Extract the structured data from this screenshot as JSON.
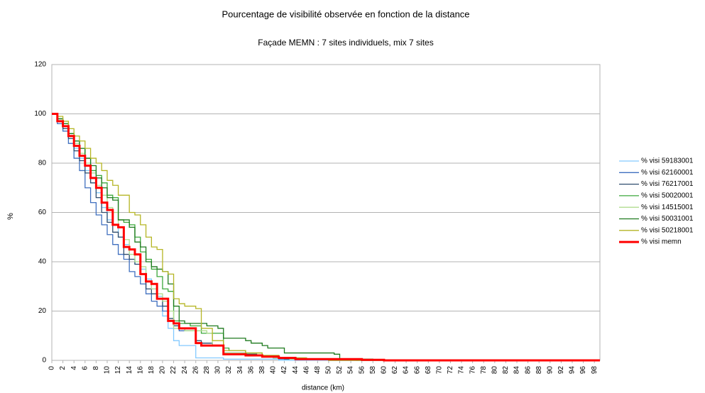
{
  "chart_data": {
    "type": "line",
    "title": "Pourcentage de visibilité observée en fonction de la distance",
    "subtitle": "Façade MEMN : 7 sites individuels, mix 7 sites",
    "x_label": "distance (km)",
    "y_label": "%",
    "step": true,
    "grid": true,
    "legend": "right",
    "x": [
      0,
      1,
      2,
      3,
      4,
      5,
      6,
      7,
      8,
      9,
      10,
      11,
      12,
      13,
      14,
      15,
      16,
      17,
      18,
      19,
      20,
      21,
      22,
      23,
      24,
      25,
      26,
      27,
      28,
      29,
      30,
      31,
      32,
      33,
      34,
      35,
      36,
      37,
      38,
      39,
      40,
      41,
      42,
      43,
      44,
      45,
      46,
      47,
      48,
      49,
      50,
      51,
      52,
      53,
      54,
      55,
      56,
      57,
      58,
      59,
      60,
      61,
      62,
      63,
      64,
      65,
      66,
      67,
      68,
      69,
      70,
      71,
      72,
      73,
      74,
      75,
      76,
      77,
      78,
      79,
      80,
      81,
      82,
      83,
      84,
      85,
      86,
      87,
      88,
      89,
      90,
      91,
      92,
      93,
      94,
      95,
      96,
      97,
      98,
      99
    ],
    "xlim": [
      0,
      99
    ],
    "xticks": [
      0,
      2,
      4,
      6,
      8,
      10,
      12,
      14,
      16,
      18,
      20,
      22,
      24,
      26,
      28,
      30,
      32,
      34,
      36,
      38,
      40,
      42,
      44,
      46,
      48,
      50,
      52,
      54,
      56,
      58,
      60,
      62,
      64,
      66,
      68,
      70,
      72,
      74,
      76,
      78,
      80,
      82,
      84,
      86,
      88,
      90,
      92,
      94,
      96,
      98
    ],
    "ylim": [
      0,
      120
    ],
    "yticks": [
      0,
      20,
      40,
      60,
      80,
      100,
      120
    ],
    "series": [
      {
        "name": "% visi 59183001",
        "color": "#83caff",
        "width": 1.3,
        "values": [
          100,
          97,
          95,
          91,
          86,
          82,
          77,
          72,
          68,
          62,
          57,
          55,
          50,
          47,
          41,
          39,
          37,
          33,
          29,
          26,
          18,
          13,
          8,
          6,
          6,
          6,
          1,
          1,
          1,
          1,
          1,
          0.5,
          0.5,
          0.5,
          0.5,
          0.5,
          0.5,
          0.5,
          0.5,
          0.5,
          0.5,
          0,
          0,
          0,
          0,
          0,
          0,
          0,
          0,
          0,
          0,
          0,
          0,
          0,
          0,
          0,
          0,
          0,
          0,
          0,
          0,
          0,
          0,
          0,
          0,
          0,
          0,
          0,
          0,
          0,
          0,
          0,
          0,
          0,
          0,
          0,
          0,
          0,
          0,
          0,
          0,
          0,
          0,
          0,
          0,
          0,
          0,
          0,
          0,
          0,
          0,
          0,
          0,
          0,
          0,
          0,
          0,
          0,
          0,
          0
        ]
      },
      {
        "name": "% visi 62160001",
        "color": "#3f6fbf",
        "width": 1.3,
        "values": [
          100,
          96,
          93,
          88,
          82,
          77,
          70,
          64,
          59,
          55,
          51,
          47,
          43,
          41,
          36,
          34,
          31,
          27,
          24,
          22,
          20,
          16,
          14,
          12,
          12,
          12,
          7,
          7,
          7,
          6,
          6,
          3,
          3,
          3,
          3,
          2,
          2,
          2,
          1.5,
          1.5,
          1,
          0.5,
          0.5,
          0.5,
          0.5,
          0.5,
          0.5,
          0.5,
          0.5,
          0.5,
          0,
          0,
          0,
          0,
          0,
          0,
          0,
          0,
          0,
          0,
          0,
          0,
          0,
          0,
          0,
          0,
          0,
          0,
          0,
          0,
          0,
          0,
          0,
          0,
          0,
          0,
          0,
          0,
          0,
          0,
          0,
          0,
          0,
          0,
          0,
          0,
          0,
          0,
          0,
          0,
          0,
          0,
          0,
          0,
          0,
          0,
          0,
          0,
          0,
          0
        ]
      },
      {
        "name": "% visi 76217001",
        "color": "#2f4d6e",
        "width": 1.3,
        "values": [
          100,
          97,
          94,
          90,
          85,
          81,
          76,
          72,
          66,
          60,
          56,
          52,
          50,
          43,
          41,
          39,
          35,
          29,
          27,
          25,
          22,
          17,
          14,
          13,
          12,
          12,
          8,
          7,
          7,
          6,
          6,
          3,
          3,
          3,
          3,
          2.5,
          2.5,
          2,
          1.5,
          1.5,
          1,
          1,
          0.5,
          0.5,
          0.5,
          0.5,
          0.5,
          0.5,
          0.5,
          0.5,
          0,
          0,
          0,
          0,
          0,
          0,
          0,
          0,
          0,
          0,
          0,
          0,
          0,
          0,
          0,
          0,
          0,
          0,
          0,
          0,
          0,
          0,
          0,
          0,
          0,
          0,
          0,
          0,
          0,
          0,
          0,
          0,
          0,
          0,
          0,
          0,
          0,
          0,
          0,
          0,
          0,
          0,
          0,
          0,
          0,
          0,
          0,
          0,
          0,
          0
        ]
      },
      {
        "name": "% visi 50020001",
        "color": "#3ba83b",
        "width": 1.3,
        "values": [
          100,
          98,
          96,
          92,
          89,
          86,
          82,
          77,
          75,
          72,
          67,
          66,
          57,
          56,
          55,
          50,
          44,
          41,
          37,
          34,
          29,
          28,
          16,
          15,
          15,
          14,
          14,
          11,
          11,
          11,
          11,
          5,
          4,
          4,
          4,
          3,
          3,
          3,
          2,
          2,
          2,
          1,
          1,
          1,
          1,
          1,
          0.5,
          0.5,
          0.5,
          0.5,
          0.5,
          0.5,
          0.5,
          0.5,
          0.5,
          0,
          0,
          0,
          0,
          0,
          0,
          0,
          0,
          0,
          0,
          0,
          0,
          0,
          0,
          0,
          0,
          0,
          0,
          0,
          0,
          0,
          0,
          0,
          0,
          0,
          0,
          0,
          0,
          0,
          0,
          0,
          0,
          0,
          0,
          0,
          0,
          0,
          0,
          0,
          0,
          0,
          0,
          0,
          0,
          0
        ]
      },
      {
        "name": "% visi 14515001",
        "color": "#b0dc8f",
        "width": 1.3,
        "values": [
          100,
          98,
          96,
          92,
          88,
          84,
          80,
          76,
          71,
          67,
          62,
          60,
          54,
          49,
          43,
          40,
          38,
          32,
          29,
          27,
          24,
          20,
          13,
          13,
          12,
          12,
          12,
          12,
          11,
          6,
          6,
          3,
          3,
          3,
          3,
          2,
          2,
          2,
          1.5,
          1.5,
          1,
          1,
          1,
          0.5,
          0.5,
          0.5,
          0.5,
          0.5,
          0.5,
          0.5,
          0,
          0,
          0,
          0,
          0,
          0,
          0,
          0,
          0,
          0,
          0,
          0,
          0,
          0,
          0,
          0,
          0,
          0,
          0,
          0,
          0,
          0,
          0,
          0,
          0,
          0,
          0,
          0,
          0,
          0,
          0,
          0,
          0,
          0,
          0,
          0,
          0,
          0,
          0,
          0,
          0,
          0,
          0,
          0,
          0,
          0,
          0,
          0,
          0,
          0
        ]
      },
      {
        "name": "% visi 50031001",
        "color": "#1e7a1e",
        "width": 1.3,
        "values": [
          100,
          98,
          96,
          92,
          89,
          86,
          82,
          79,
          74,
          70,
          66,
          65,
          57,
          57,
          54,
          48,
          46,
          40,
          38,
          37,
          36,
          31,
          22,
          16,
          15,
          15,
          15,
          15,
          14,
          14,
          13,
          9,
          9,
          9,
          9,
          8,
          7,
          7,
          6,
          5,
          5,
          5,
          3,
          3,
          3,
          3,
          3,
          3,
          3,
          3,
          3,
          2.5,
          0.5,
          0.5,
          0.5,
          0.5,
          0.5,
          0.5,
          0.2,
          0.2,
          0,
          0,
          0,
          0,
          0,
          0,
          0,
          0,
          0,
          0,
          0,
          0,
          0,
          0,
          0,
          0,
          0,
          0,
          0,
          0,
          0,
          0,
          0,
          0,
          0,
          0,
          0,
          0,
          0,
          0,
          0,
          0,
          0,
          0,
          0,
          0,
          0,
          0,
          0,
          0
        ]
      },
      {
        "name": "% visi 50218001",
        "color": "#b5b524",
        "width": 1.3,
        "values": [
          100,
          99,
          97,
          94,
          91,
          89,
          86,
          82,
          80,
          77,
          73,
          71,
          67,
          67,
          60,
          59,
          55,
          50,
          46,
          45,
          36,
          35,
          25,
          23,
          22,
          22,
          21,
          13,
          13,
          8,
          8,
          4,
          4,
          4,
          4,
          3,
          3,
          3,
          2,
          2,
          2,
          1,
          1,
          1,
          1,
          1,
          0.5,
          0.5,
          0.5,
          0.5,
          0,
          0,
          0,
          0,
          0,
          0,
          0,
          0,
          0,
          0,
          0,
          0,
          0,
          0,
          0,
          0,
          0,
          0,
          0,
          0,
          0,
          0,
          0,
          0,
          0,
          0,
          0,
          0,
          0,
          0,
          0,
          0,
          0,
          0,
          0,
          0,
          0,
          0,
          0,
          0,
          0,
          0,
          0,
          0,
          0,
          0,
          0,
          0,
          0,
          0
        ]
      },
      {
        "name": "% visi memn",
        "color": "#ff0000",
        "width": 3,
        "values": [
          100,
          97,
          95,
          91,
          87,
          83,
          79,
          74,
          70,
          64,
          61,
          55,
          54,
          46,
          45,
          43,
          35,
          32,
          31,
          25,
          25,
          16,
          15,
          13,
          13,
          13,
          7,
          6,
          6,
          6,
          6,
          2.5,
          2.5,
          2.5,
          2.5,
          2,
          2,
          2,
          1.5,
          1.5,
          1.5,
          1,
          1,
          1,
          0.5,
          0.5,
          0.5,
          0.5,
          0.5,
          0.5,
          0.5,
          0.5,
          0.5,
          0.5,
          0.5,
          0.5,
          0.2,
          0.2,
          0.2,
          0.2,
          0,
          0,
          0,
          0,
          0,
          0,
          0,
          0,
          0,
          0,
          0,
          0,
          0,
          0,
          0,
          0,
          0,
          0,
          0,
          0,
          0,
          0,
          0,
          0,
          0,
          0,
          0,
          0,
          0,
          0,
          0,
          0,
          0,
          0,
          0,
          0,
          0,
          0,
          0,
          0
        ]
      }
    ]
  }
}
